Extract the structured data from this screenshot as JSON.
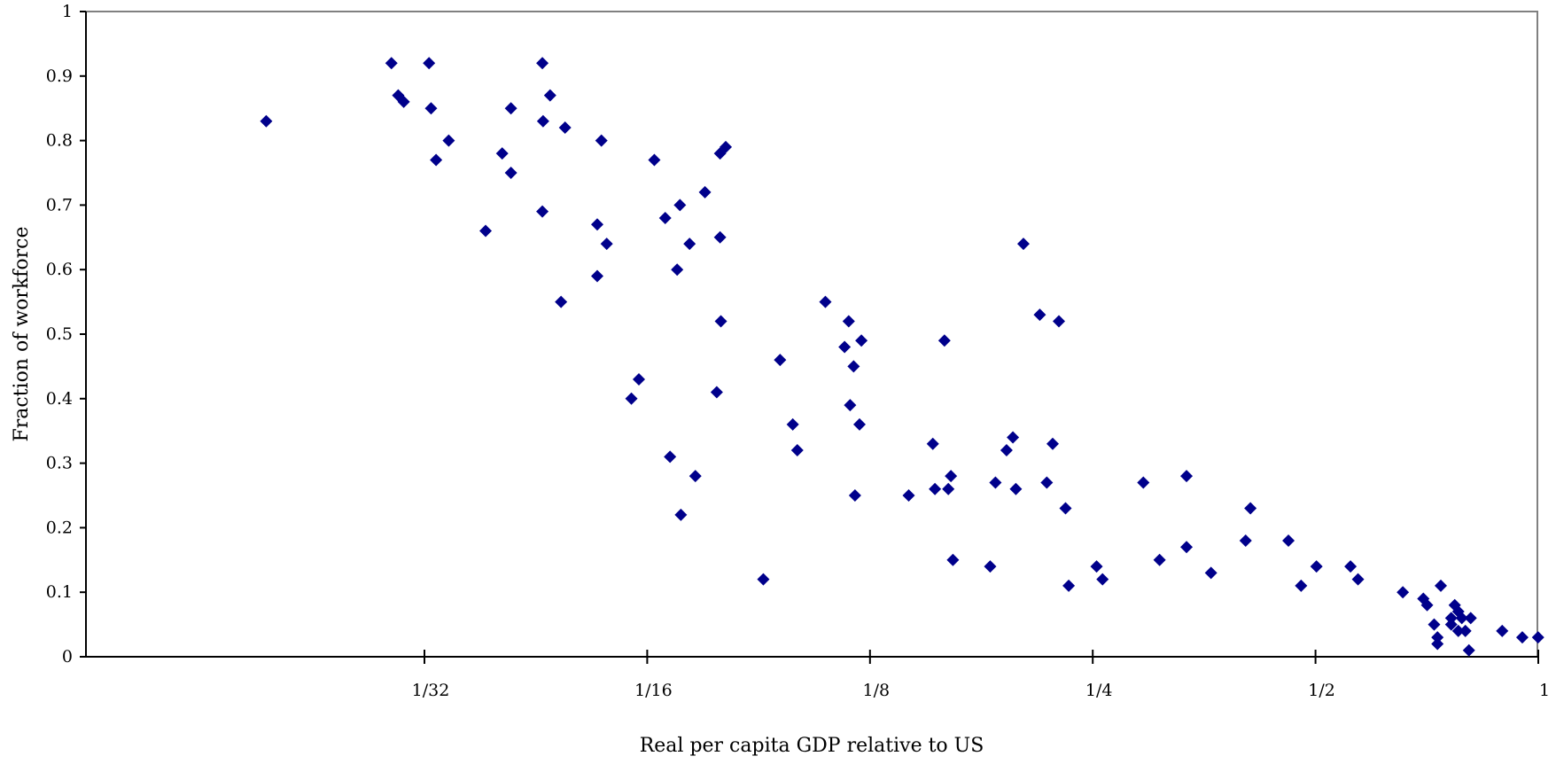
{
  "chart_data": {
    "type": "scatter",
    "title": "",
    "xlabel": "Real per capita GDP relative to US",
    "ylabel": "Fraction of workforce",
    "x_scale": "log2",
    "xlim": [
      0.0109,
      1
    ],
    "ylim": [
      0,
      1
    ],
    "x_ticks": [
      {
        "value": 0.03125,
        "label": "1/32"
      },
      {
        "value": 0.0625,
        "label": "1/16"
      },
      {
        "value": 0.125,
        "label": "1/8"
      },
      {
        "value": 0.25,
        "label": "1/4"
      },
      {
        "value": 0.5,
        "label": "1/2"
      },
      {
        "value": 1,
        "label": "1"
      }
    ],
    "y_ticks": [
      {
        "value": 0,
        "label": "0"
      },
      {
        "value": 0.1,
        "label": "0.1"
      },
      {
        "value": 0.2,
        "label": "0.2"
      },
      {
        "value": 0.3,
        "label": "0.3"
      },
      {
        "value": 0.4,
        "label": "0.4"
      },
      {
        "value": 0.5,
        "label": "0.5"
      },
      {
        "value": 0.6,
        "label": "0.6"
      },
      {
        "value": 0.7,
        "label": "0.7"
      },
      {
        "value": 0.8,
        "label": "0.8"
      },
      {
        "value": 0.9,
        "label": "0.9"
      },
      {
        "value": 1,
        "label": "1"
      }
    ],
    "grid": false,
    "marker": "diamond",
    "marker_color": "#00008B",
    "axis_color": "#000000",
    "frame_color": "#808080",
    "points": [
      {
        "x": 0.0191,
        "y": 0.83
      },
      {
        "x": 0.0282,
        "y": 0.92
      },
      {
        "x": 0.0288,
        "y": 0.87
      },
      {
        "x": 0.0293,
        "y": 0.86
      },
      {
        "x": 0.0317,
        "y": 0.92
      },
      {
        "x": 0.0319,
        "y": 0.85
      },
      {
        "x": 0.0324,
        "y": 0.77
      },
      {
        "x": 0.0337,
        "y": 0.8
      },
      {
        "x": 0.0378,
        "y": 0.66
      },
      {
        "x": 0.0398,
        "y": 0.78
      },
      {
        "x": 0.0409,
        "y": 0.85
      },
      {
        "x": 0.0409,
        "y": 0.75
      },
      {
        "x": 0.0451,
        "y": 0.92
      },
      {
        "x": 0.0452,
        "y": 0.83
      },
      {
        "x": 0.0451,
        "y": 0.69
      },
      {
        "x": 0.0462,
        "y": 0.87
      },
      {
        "x": 0.0478,
        "y": 0.55
      },
      {
        "x": 0.0484,
        "y": 0.82
      },
      {
        "x": 0.0535,
        "y": 0.67
      },
      {
        "x": 0.0535,
        "y": 0.59
      },
      {
        "x": 0.0542,
        "y": 0.8
      },
      {
        "x": 0.0551,
        "y": 0.64
      },
      {
        "x": 0.0595,
        "y": 0.4
      },
      {
        "x": 0.0609,
        "y": 0.43
      },
      {
        "x": 0.0671,
        "y": 0.31
      },
      {
        "x": 0.0694,
        "y": 0.22
      },
      {
        "x": 0.0639,
        "y": 0.77
      },
      {
        "x": 0.0661,
        "y": 0.68
      },
      {
        "x": 0.0686,
        "y": 0.6
      },
      {
        "x": 0.0692,
        "y": 0.7
      },
      {
        "x": 0.0713,
        "y": 0.64
      },
      {
        "x": 0.0726,
        "y": 0.28
      },
      {
        "x": 0.0748,
        "y": 0.72
      },
      {
        "x": 0.0776,
        "y": 0.41
      },
      {
        "x": 0.0784,
        "y": 0.78
      },
      {
        "x": 0.0784,
        "y": 0.65
      },
      {
        "x": 0.0786,
        "y": 0.52
      },
      {
        "x": 0.0798,
        "y": 0.79
      },
      {
        "x": 0.0897,
        "y": 0.12
      },
      {
        "x": 0.0945,
        "y": 0.46
      },
      {
        "x": 0.0983,
        "y": 0.36
      },
      {
        "x": 0.0997,
        "y": 0.32
      },
      {
        "x": 0.1088,
        "y": 0.55
      },
      {
        "x": 0.1155,
        "y": 0.48
      },
      {
        "x": 0.117,
        "y": 0.52
      },
      {
        "x": 0.1175,
        "y": 0.39
      },
      {
        "x": 0.1188,
        "y": 0.45
      },
      {
        "x": 0.1193,
        "y": 0.25
      },
      {
        "x": 0.121,
        "y": 0.36
      },
      {
        "x": 0.1217,
        "y": 0.49
      },
      {
        "x": 0.141,
        "y": 0.25
      },
      {
        "x": 0.152,
        "y": 0.33
      },
      {
        "x": 0.153,
        "y": 0.26
      },
      {
        "x": 0.1576,
        "y": 0.49
      },
      {
        "x": 0.1595,
        "y": 0.26
      },
      {
        "x": 0.1608,
        "y": 0.28
      },
      {
        "x": 0.1618,
        "y": 0.15
      },
      {
        "x": 0.1817,
        "y": 0.14
      },
      {
        "x": 0.1847,
        "y": 0.27
      },
      {
        "x": 0.1912,
        "y": 0.32
      },
      {
        "x": 0.195,
        "y": 0.34
      },
      {
        "x": 0.1968,
        "y": 0.26
      },
      {
        "x": 0.2015,
        "y": 0.64
      },
      {
        "x": 0.212,
        "y": 0.53
      },
      {
        "x": 0.2167,
        "y": 0.27
      },
      {
        "x": 0.2207,
        "y": 0.33
      },
      {
        "x": 0.225,
        "y": 0.52
      },
      {
        "x": 0.2297,
        "y": 0.23
      },
      {
        "x": 0.232,
        "y": 0.11
      },
      {
        "x": 0.253,
        "y": 0.14
      },
      {
        "x": 0.2577,
        "y": 0.12
      },
      {
        "x": 0.2926,
        "y": 0.27
      },
      {
        "x": 0.3078,
        "y": 0.15
      },
      {
        "x": 0.3347,
        "y": 0.28
      },
      {
        "x": 0.3347,
        "y": 0.17
      },
      {
        "x": 0.3612,
        "y": 0.13
      },
      {
        "x": 0.4023,
        "y": 0.18
      },
      {
        "x": 0.4083,
        "y": 0.23
      },
      {
        "x": 0.4596,
        "y": 0.18
      },
      {
        "x": 0.4781,
        "y": 0.11
      },
      {
        "x": 0.5015,
        "y": 0.14
      },
      {
        "x": 0.5575,
        "y": 0.14
      },
      {
        "x": 0.5707,
        "y": 0.12
      },
      {
        "x": 0.6561,
        "y": 0.1
      },
      {
        "x": 0.6993,
        "y": 0.09
      },
      {
        "x": 0.7076,
        "y": 0.08
      },
      {
        "x": 0.7232,
        "y": 0.05
      },
      {
        "x": 0.7307,
        "y": 0.02
      },
      {
        "x": 0.7307,
        "y": 0.03
      },
      {
        "x": 0.7384,
        "y": 0.11
      },
      {
        "x": 0.7627,
        "y": 0.06
      },
      {
        "x": 0.7627,
        "y": 0.05
      },
      {
        "x": 0.7711,
        "y": 0.08
      },
      {
        "x": 0.7797,
        "y": 0.04
      },
      {
        "x": 0.7797,
        "y": 0.07
      },
      {
        "x": 0.7883,
        "y": 0.06
      },
      {
        "x": 0.797,
        "y": 0.04
      },
      {
        "x": 0.8059,
        "y": 0.01
      },
      {
        "x": 0.8103,
        "y": 0.06
      },
      {
        "x": 0.8938,
        "y": 0.04
      },
      {
        "x": 0.9515,
        "y": 0.03
      },
      {
        "x": 0.9993,
        "y": 0.03
      }
    ]
  }
}
